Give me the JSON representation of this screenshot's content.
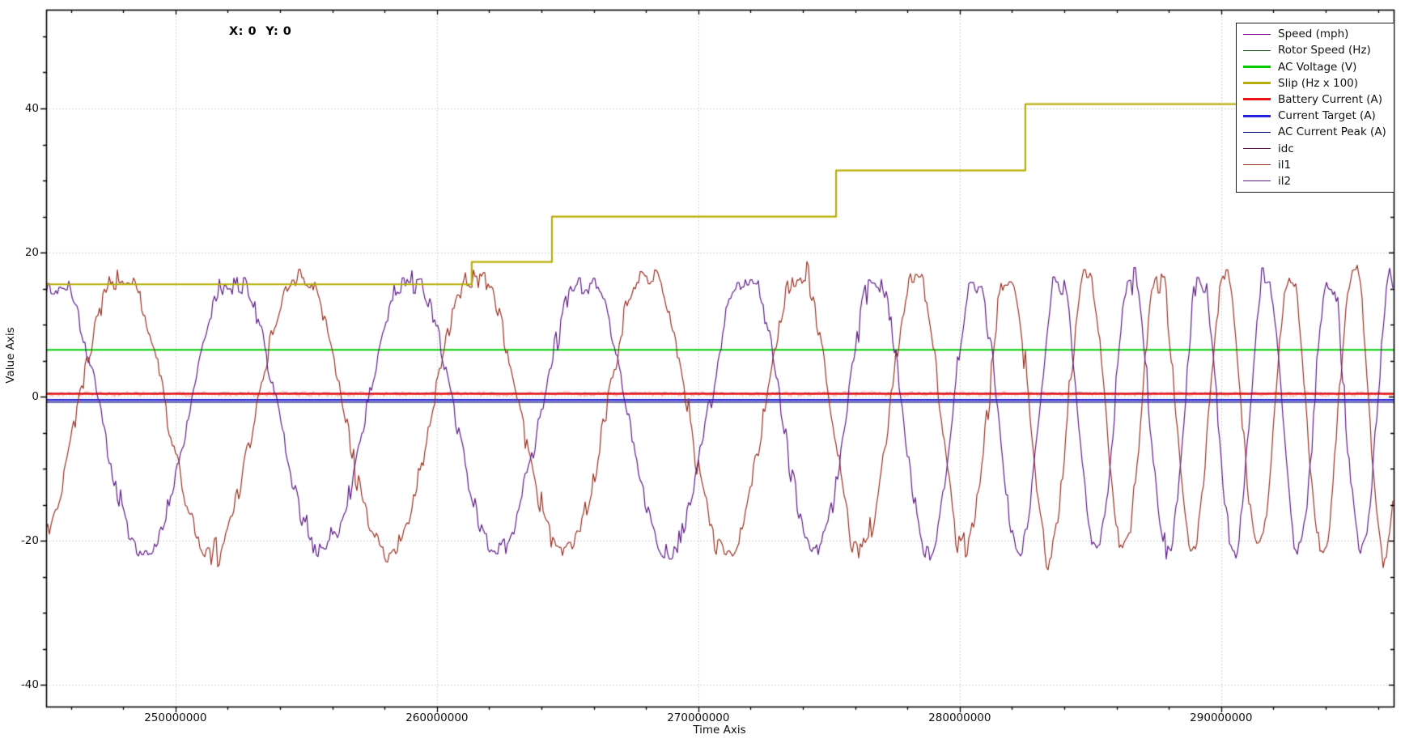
{
  "overlay": {
    "cursor_readout": "X: 0  Y: 0"
  },
  "axes": {
    "x": {
      "label": "Time Axis",
      "tick_labels": [
        "250000000",
        "260000000",
        "270000000",
        "280000000",
        "290000000"
      ]
    },
    "y": {
      "label": "Value Axis",
      "tick_labels": [
        "40",
        "20",
        "0",
        "-20",
        "-40"
      ]
    }
  },
  "legend": {
    "items": [
      {
        "label": "Speed (mph)",
        "color": "#7a0b8a",
        "thick": false
      },
      {
        "label": "Rotor Speed (Hz)",
        "color": "#226022",
        "thick": false
      },
      {
        "label": "AC Voltage (V)",
        "color": "#00cc00",
        "thick": true
      },
      {
        "label": "Slip (Hz x 100)",
        "color": "#b7ae08",
        "thick": true
      },
      {
        "label": "Battery Current (A)",
        "color": "#ee1111",
        "thick": true
      },
      {
        "label": "Current Target (A)",
        "color": "#2525dd",
        "thick": true
      },
      {
        "label": "AC Current Peak (A)",
        "color": "#00006f",
        "thick": false
      },
      {
        "label": "idc",
        "color": "#5c1342",
        "thick": false
      },
      {
        "label": "il1",
        "color": "#993122",
        "thick": false
      },
      {
        "label": "il2",
        "color": "#5e1c87",
        "thick": false
      }
    ]
  },
  "chart_data": {
    "type": "line",
    "title": "",
    "xlabel": "Time Axis",
    "ylabel": "Value Axis",
    "xlim": [
      245050000,
      296600000
    ],
    "ylim": [
      -43.0,
      53.7
    ],
    "x_major_ticks": [
      250000000,
      260000000,
      270000000,
      280000000,
      290000000
    ],
    "x_minor_step": 2000000,
    "y_major_ticks": [
      40,
      20,
      0,
      -20,
      -40
    ],
    "y_minor_step": 5,
    "grid": "dotted gray on major ticks, both axes",
    "legend_position": "top-right",
    "cursor_readout": {
      "x": 0,
      "y": 0
    },
    "series": [
      {
        "name": "Speed (mph)",
        "color": "#7a0b8a",
        "lw": 1.2,
        "kind": "hidden",
        "value": null
      },
      {
        "name": "Rotor Speed (Hz)",
        "color": "#226022",
        "lw": 1.2,
        "kind": "hidden",
        "value": null
      },
      {
        "name": "AC Voltage (V)",
        "color": "#00cc00",
        "lw": 2.2,
        "kind": "constant",
        "value": 6.5
      },
      {
        "name": "Slip (Hz x 100)",
        "color": "#b7ae08",
        "lw": 2.2,
        "kind": "steps",
        "x": [
          245050000,
          261330000,
          264400000,
          275270000,
          282510000
        ],
        "y": [
          15.6,
          18.7,
          25.0,
          31.4,
          40.6
        ]
      },
      {
        "name": "Battery Current (A)",
        "color": "#ee1111",
        "lw": 2.2,
        "kind": "constant_noisy",
        "value": 0.4,
        "noise": 0.35,
        "fuzz": "rgba(255,70,70,0.4)"
      },
      {
        "name": "Current Target (A)",
        "color": "#2525dd",
        "lw": 2.2,
        "kind": "constant",
        "value": -0.45
      },
      {
        "name": "AC Current Peak (A)",
        "color": "#00006f",
        "lw": 1.2,
        "kind": "constant",
        "value": -0.75
      },
      {
        "name": "idc",
        "color": "#5c1342",
        "lw": 1.1,
        "kind": "constant_noisy",
        "value": 0.45,
        "noise": 0.15,
        "fuzz": "rgba(92,19,66,0.4)"
      },
      {
        "name": "il1",
        "color": "#993122",
        "lw": 1.2,
        "kind": "chirp_sine",
        "amplitude": 19.5,
        "offset": -2.0,
        "clip_top": 16.4,
        "phase_at_start_deg": -66,
        "noise": 1.3
      },
      {
        "name": "il2",
        "color": "#5e1c87",
        "lw": 1.2,
        "kind": "chirp_sine",
        "amplitude": 19.5,
        "offset": -2.0,
        "clip_top": 15.4,
        "phase_at_start_deg": 69,
        "noise": 1.3
      }
    ],
    "chirp_period_profile": [
      [
        245050000,
        6870000
      ],
      [
        264950000,
        6660000
      ],
      [
        271150000,
        5880000
      ],
      [
        276100000,
        4490000
      ],
      [
        279200000,
        3720000
      ],
      [
        283530000,
        2940000
      ],
      [
        289100000,
        2540000
      ],
      [
        296600000,
        2350000
      ]
    ]
  },
  "style": {
    "grid_color": "#c8c8c8",
    "spine_color": "#000000",
    "background": "#ffffff"
  }
}
